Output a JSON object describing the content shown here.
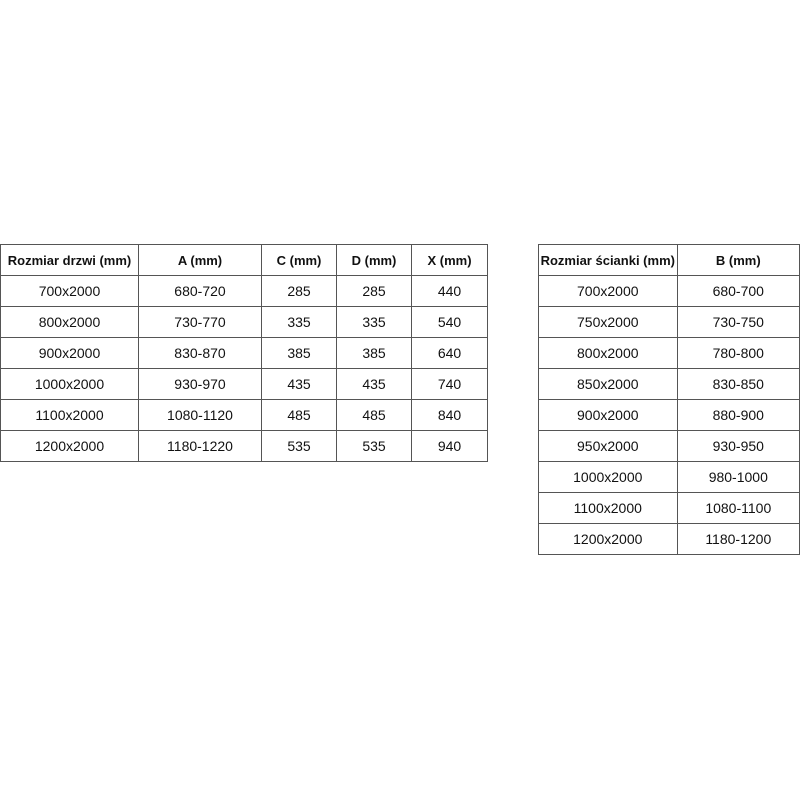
{
  "door_table": {
    "headers": [
      "Rozmiar drzwi (mm)",
      "A (mm)",
      "C (mm)",
      "D (mm)",
      "X (mm)"
    ],
    "rows": [
      [
        "700x2000",
        "680-720",
        "285",
        "285",
        "440"
      ],
      [
        "800x2000",
        "730-770",
        "335",
        "335",
        "540"
      ],
      [
        "900x2000",
        "830-870",
        "385",
        "385",
        "640"
      ],
      [
        "1000x2000",
        "930-970",
        "435",
        "435",
        "740"
      ],
      [
        "1100x2000",
        "1080-1120",
        "485",
        "485",
        "840"
      ],
      [
        "1200x2000",
        "1180-1220",
        "535",
        "535",
        "940"
      ]
    ]
  },
  "wall_table": {
    "headers": [
      "Rozmiar ścianki (mm)",
      "B (mm)"
    ],
    "rows": [
      [
        "700x2000",
        "680-700"
      ],
      [
        "750x2000",
        "730-750"
      ],
      [
        "800x2000",
        "780-800"
      ],
      [
        "850x2000",
        "830-850"
      ],
      [
        "900x2000",
        "880-900"
      ],
      [
        "950x2000",
        "930-950"
      ],
      [
        "1000x2000",
        "980-1000"
      ],
      [
        "1100x2000",
        "1080-1100"
      ],
      [
        "1200x2000",
        "1180-1200"
      ]
    ]
  }
}
